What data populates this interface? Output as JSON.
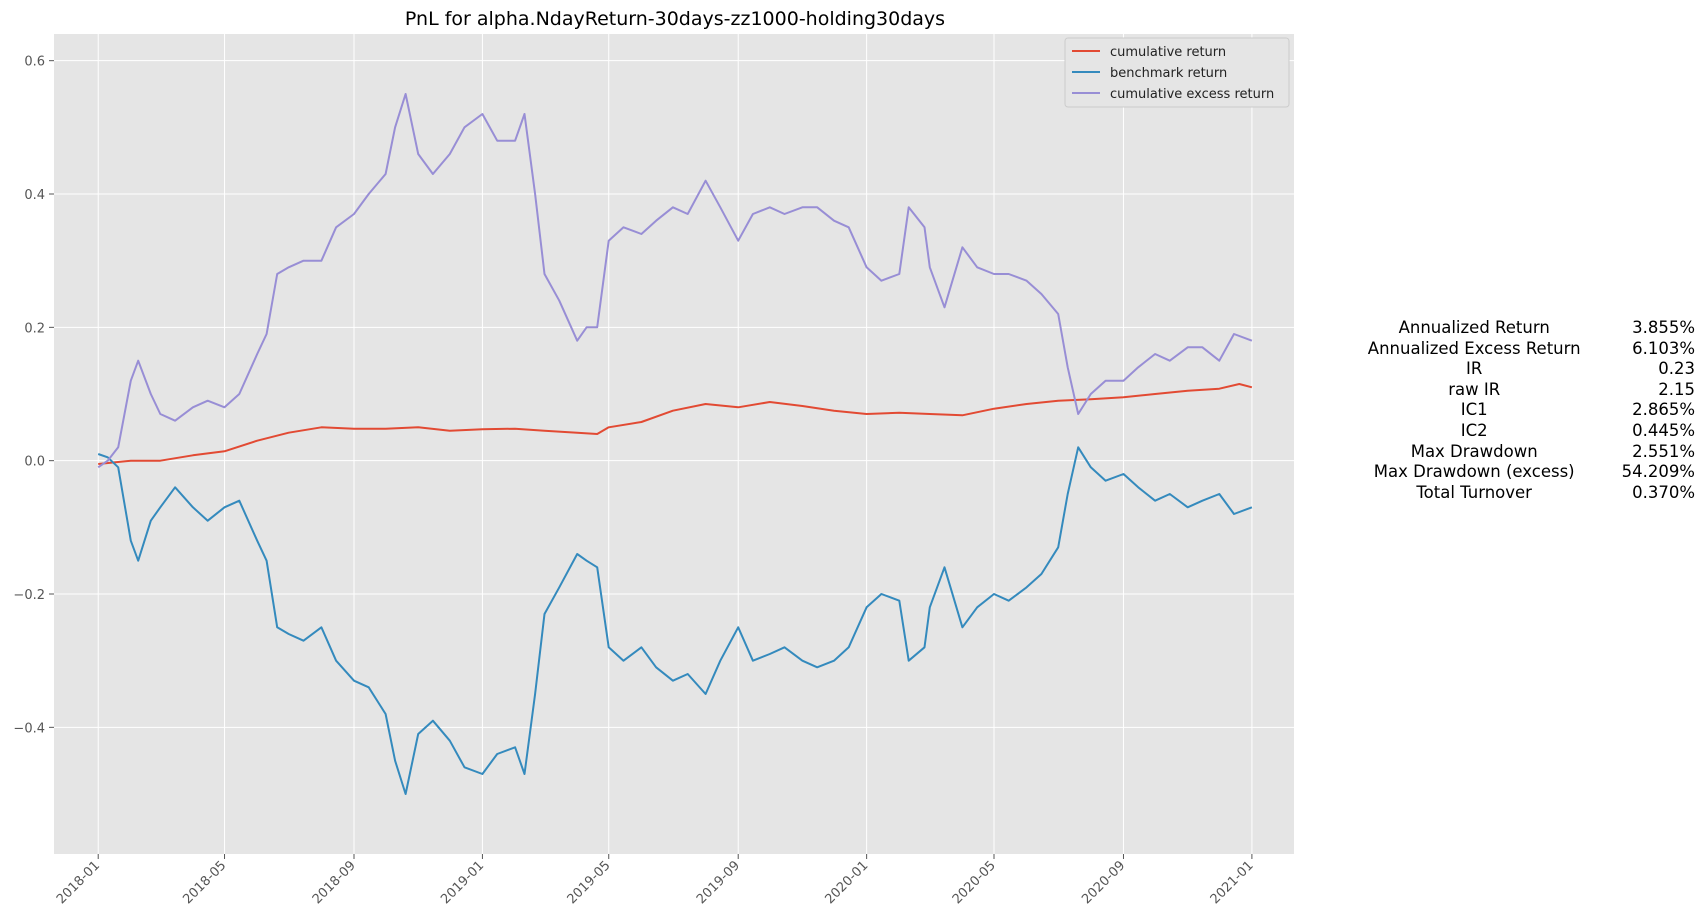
{
  "chart_data": {
    "type": "line",
    "title": "PnL for alpha.NdayReturn-30days-zz1000-holding30days",
    "xlabel": "",
    "ylabel": "",
    "xlim": [
      "2017-11-20",
      "2021-02-10"
    ],
    "ylim": [
      -0.59,
      0.64
    ],
    "x_tick_labels": [
      "2018-01",
      "2018-05",
      "2018-09",
      "2019-01",
      "2019-05",
      "2019-09",
      "2020-01",
      "2020-05",
      "2020-09",
      "2021-01"
    ],
    "y_ticks": [
      -0.4,
      -0.2,
      0.0,
      0.2,
      0.4,
      0.6
    ],
    "y_tick_labels": [
      "−0.4",
      "−0.2",
      "0.0",
      "0.2",
      "0.4",
      "0.6"
    ],
    "grid": true,
    "legend_position": "top-right",
    "series": [
      {
        "name": "cumulative return",
        "color": "#e24a33",
        "x": [
          "2018-01-01",
          "2018-02-01",
          "2018-03-01",
          "2018-04-01",
          "2018-05-01",
          "2018-06-01",
          "2018-07-01",
          "2018-08-01",
          "2018-09-01",
          "2018-10-01",
          "2018-11-01",
          "2018-12-01",
          "2019-01-01",
          "2019-02-01",
          "2019-03-01",
          "2019-04-01",
          "2019-04-20",
          "2019-05-01",
          "2019-06-01",
          "2019-07-01",
          "2019-08-01",
          "2019-09-01",
          "2019-10-01",
          "2019-11-01",
          "2019-12-01",
          "2020-01-01",
          "2020-02-01",
          "2020-03-01",
          "2020-04-01",
          "2020-05-01",
          "2020-06-01",
          "2020-07-01",
          "2020-08-01",
          "2020-09-01",
          "2020-10-01",
          "2020-11-01",
          "2020-12-01",
          "2020-12-20",
          "2021-01-01"
        ],
        "y": [
          -0.005,
          0.0,
          0.0,
          0.008,
          0.014,
          0.03,
          0.042,
          0.05,
          0.048,
          0.048,
          0.05,
          0.045,
          0.047,
          0.048,
          0.045,
          0.042,
          0.04,
          0.05,
          0.058,
          0.075,
          0.085,
          0.08,
          0.088,
          0.082,
          0.075,
          0.07,
          0.072,
          0.07,
          0.068,
          0.078,
          0.085,
          0.09,
          0.092,
          0.095,
          0.1,
          0.105,
          0.108,
          0.115,
          0.11
        ]
      },
      {
        "name": "benchmark return",
        "color": "#348abd",
        "x": [
          "2018-01-01",
          "2018-01-10",
          "2018-01-20",
          "2018-02-01",
          "2018-02-08",
          "2018-02-20",
          "2018-03-01",
          "2018-03-15",
          "2018-04-01",
          "2018-04-15",
          "2018-05-01",
          "2018-05-15",
          "2018-06-01",
          "2018-06-10",
          "2018-06-20",
          "2018-07-01",
          "2018-07-15",
          "2018-08-01",
          "2018-08-15",
          "2018-09-01",
          "2018-09-15",
          "2018-10-01",
          "2018-10-10",
          "2018-10-20",
          "2018-11-01",
          "2018-11-15",
          "2018-12-01",
          "2018-12-15",
          "2019-01-01",
          "2019-01-15",
          "2019-02-01",
          "2019-02-10",
          "2019-02-20",
          "2019-03-01",
          "2019-03-15",
          "2019-04-01",
          "2019-04-10",
          "2019-04-20",
          "2019-05-01",
          "2019-05-15",
          "2019-06-01",
          "2019-06-15",
          "2019-07-01",
          "2019-07-15",
          "2019-08-01",
          "2019-08-15",
          "2019-09-01",
          "2019-09-15",
          "2019-10-01",
          "2019-10-15",
          "2019-11-01",
          "2019-11-15",
          "2019-12-01",
          "2019-12-15",
          "2020-01-01",
          "2020-01-15",
          "2020-02-01",
          "2020-02-10",
          "2020-02-25",
          "2020-03-01",
          "2020-03-15",
          "2020-04-01",
          "2020-04-15",
          "2020-05-01",
          "2020-05-15",
          "2020-06-01",
          "2020-06-15",
          "2020-07-01",
          "2020-07-10",
          "2020-07-20",
          "2020-08-01",
          "2020-08-15",
          "2020-09-01",
          "2020-09-15",
          "2020-10-01",
          "2020-10-15",
          "2020-11-01",
          "2020-11-15",
          "2020-12-01",
          "2020-12-15",
          "2021-01-01"
        ],
        "y": [
          0.01,
          0.005,
          -0.01,
          -0.12,
          -0.15,
          -0.09,
          -0.07,
          -0.04,
          -0.07,
          -0.09,
          -0.07,
          -0.06,
          -0.12,
          -0.15,
          -0.25,
          -0.26,
          -0.27,
          -0.25,
          -0.3,
          -0.33,
          -0.34,
          -0.38,
          -0.45,
          -0.5,
          -0.41,
          -0.39,
          -0.42,
          -0.46,
          -0.47,
          -0.44,
          -0.43,
          -0.47,
          -0.35,
          -0.23,
          -0.19,
          -0.14,
          -0.15,
          -0.16,
          -0.28,
          -0.3,
          -0.28,
          -0.31,
          -0.33,
          -0.32,
          -0.35,
          -0.3,
          -0.25,
          -0.3,
          -0.29,
          -0.28,
          -0.3,
          -0.31,
          -0.3,
          -0.28,
          -0.22,
          -0.2,
          -0.21,
          -0.3,
          -0.28,
          -0.22,
          -0.16,
          -0.25,
          -0.22,
          -0.2,
          -0.21,
          -0.19,
          -0.17,
          -0.13,
          -0.05,
          0.02,
          -0.01,
          -0.03,
          -0.02,
          -0.04,
          -0.06,
          -0.05,
          -0.07,
          -0.06,
          -0.05,
          -0.08,
          -0.07
        ]
      },
      {
        "name": "cumulative excess return",
        "color": "#988ed5",
        "x": [
          "2018-01-01",
          "2018-01-10",
          "2018-01-20",
          "2018-02-01",
          "2018-02-08",
          "2018-02-20",
          "2018-03-01",
          "2018-03-15",
          "2018-04-01",
          "2018-04-15",
          "2018-05-01",
          "2018-05-15",
          "2018-06-01",
          "2018-06-10",
          "2018-06-20",
          "2018-07-01",
          "2018-07-15",
          "2018-08-01",
          "2018-08-15",
          "2018-09-01",
          "2018-09-15",
          "2018-10-01",
          "2018-10-10",
          "2018-10-20",
          "2018-11-01",
          "2018-11-15",
          "2018-12-01",
          "2018-12-15",
          "2019-01-01",
          "2019-01-15",
          "2019-02-01",
          "2019-02-10",
          "2019-02-20",
          "2019-03-01",
          "2019-03-15",
          "2019-04-01",
          "2019-04-10",
          "2019-04-20",
          "2019-05-01",
          "2019-05-15",
          "2019-06-01",
          "2019-06-15",
          "2019-07-01",
          "2019-07-15",
          "2019-08-01",
          "2019-08-15",
          "2019-09-01",
          "2019-09-15",
          "2019-10-01",
          "2019-10-15",
          "2019-11-01",
          "2019-11-15",
          "2019-12-01",
          "2019-12-15",
          "2020-01-01",
          "2020-01-15",
          "2020-02-01",
          "2020-02-10",
          "2020-02-25",
          "2020-03-01",
          "2020-03-15",
          "2020-04-01",
          "2020-04-15",
          "2020-05-01",
          "2020-05-15",
          "2020-06-01",
          "2020-06-15",
          "2020-07-01",
          "2020-07-10",
          "2020-07-20",
          "2020-08-01",
          "2020-08-15",
          "2020-09-01",
          "2020-09-15",
          "2020-10-01",
          "2020-10-15",
          "2020-11-01",
          "2020-11-15",
          "2020-12-01",
          "2020-12-15",
          "2021-01-01"
        ],
        "y": [
          -0.01,
          0.0,
          0.02,
          0.12,
          0.15,
          0.1,
          0.07,
          0.06,
          0.08,
          0.09,
          0.08,
          0.1,
          0.16,
          0.19,
          0.28,
          0.29,
          0.3,
          0.3,
          0.35,
          0.37,
          0.4,
          0.43,
          0.5,
          0.55,
          0.46,
          0.43,
          0.46,
          0.5,
          0.52,
          0.48,
          0.48,
          0.52,
          0.4,
          0.28,
          0.24,
          0.18,
          0.2,
          0.2,
          0.33,
          0.35,
          0.34,
          0.36,
          0.38,
          0.37,
          0.42,
          0.38,
          0.33,
          0.37,
          0.38,
          0.37,
          0.38,
          0.38,
          0.36,
          0.35,
          0.29,
          0.27,
          0.28,
          0.38,
          0.35,
          0.29,
          0.23,
          0.32,
          0.29,
          0.28,
          0.28,
          0.27,
          0.25,
          0.22,
          0.14,
          0.07,
          0.1,
          0.12,
          0.12,
          0.14,
          0.16,
          0.15,
          0.17,
          0.17,
          0.15,
          0.19,
          0.18
        ]
      }
    ]
  },
  "stats": [
    {
      "label": "Annualized Return",
      "value": "3.855%"
    },
    {
      "label": "Annualized Excess Return",
      "value": "6.103%"
    },
    {
      "label": "IR",
      "value": "0.23"
    },
    {
      "label": "raw IR",
      "value": "2.15"
    },
    {
      "label": "IC1",
      "value": "2.865%"
    },
    {
      "label": "IC2",
      "value": "0.445%"
    },
    {
      "label": "Max Drawdown",
      "value": "2.551%"
    },
    {
      "label": "Max Drawdown (excess)",
      "value": "54.209%"
    },
    {
      "label": "Total Turnover",
      "value": "0.370%"
    }
  ]
}
